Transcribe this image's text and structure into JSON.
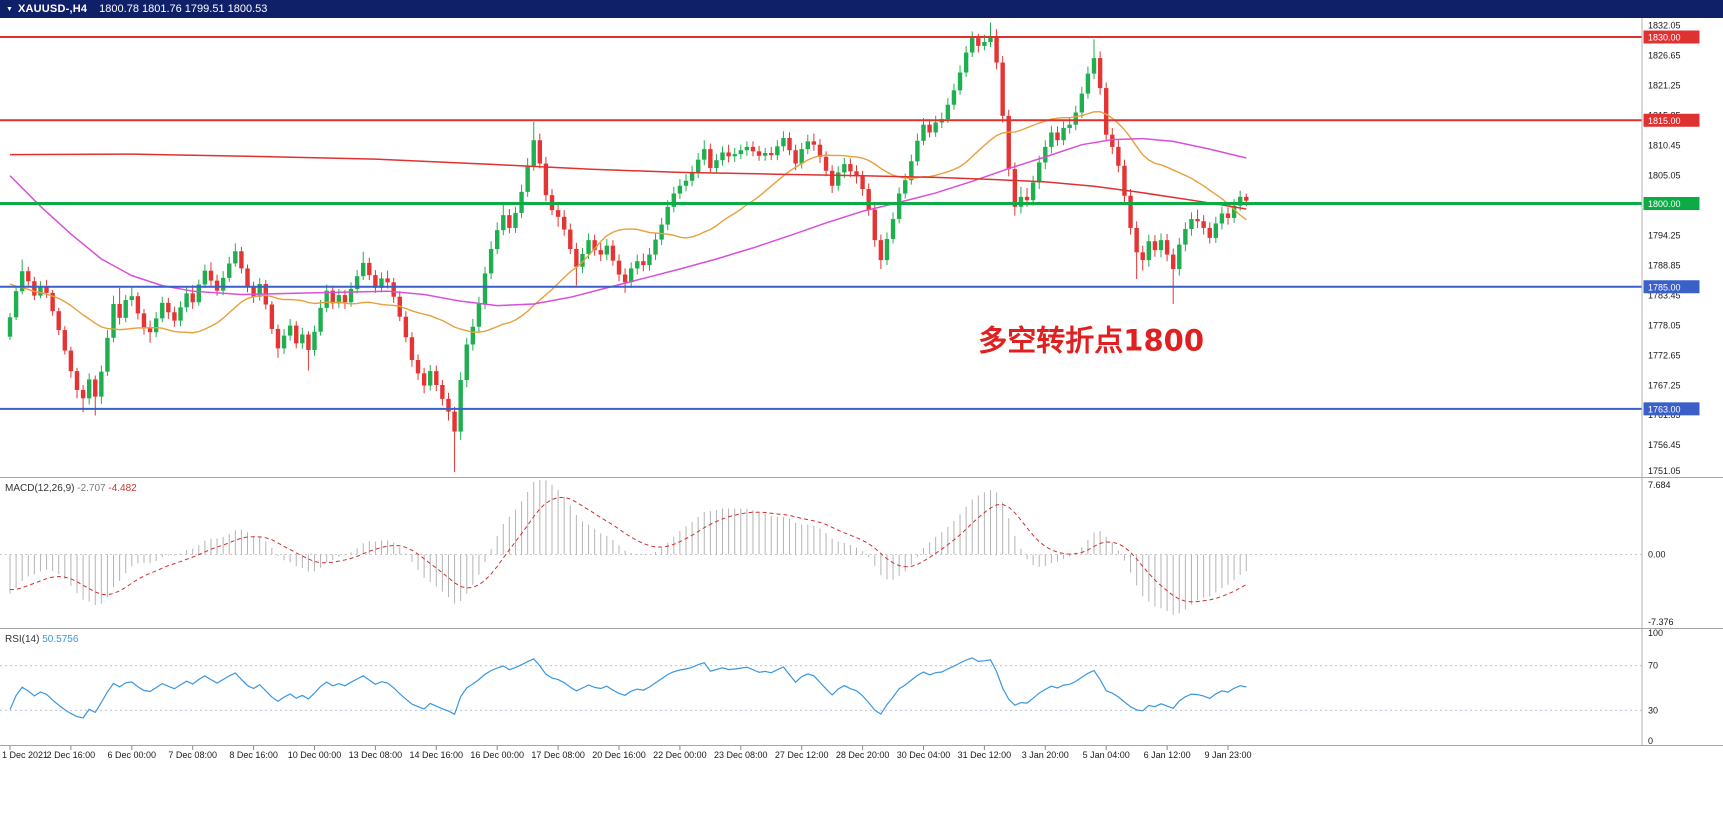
{
  "title_bar": {
    "symbol_timeframe": "XAUUSD-,H4",
    "quotes": "1800.78 1801.76 1799.51 1800.53"
  },
  "colors": {
    "up": "#1fae50",
    "down": "#e43434",
    "titlebar": "#0f2069",
    "ma_fast": "#e8a03c",
    "ma_mid": "#d94fd9",
    "ma_slow": "#e03131",
    "macd_hist": "#b4b4b4",
    "macd_signal": "#d03030",
    "rsi": "#3a97e0",
    "scale_text": "#1a1a1a",
    "axis_text": "#1a1a1a",
    "separator": "#a6a6a6"
  },
  "chart_data": {
    "type": "candlestick",
    "symbol": "XAUUSD-",
    "timeframe": "H4",
    "title": "XAUUSD-,H4 1800.78 1801.76 1799.51 1800.53",
    "x_axis_labels": [
      "1 Dec 2021",
      "2 Dec 16:00",
      "6 Dec 00:00",
      "7 Dec 08:00",
      "8 Dec 16:00",
      "10 Dec 00:00",
      "13 Dec 08:00",
      "14 Dec 16:00",
      "16 Dec 00:00",
      "17 Dec 08:00",
      "20 Dec 16:00",
      "22 Dec 00:00",
      "23 Dec 08:00",
      "27 Dec 12:00",
      "28 Dec 20:00",
      "30 Dec 04:00",
      "31 Dec 12:00",
      "3 Jan 20:00",
      "5 Jan 04:00",
      "6 Jan 12:00",
      "9 Jan 23:00"
    ],
    "bars_per_label": 10,
    "first_open": 1776.0,
    "prehistory_closes": [
      1797,
      1795,
      1793,
      1794,
      1792,
      1790,
      1791,
      1789,
      1787,
      1788,
      1786,
      1787,
      1785,
      1786,
      1784,
      1785,
      1783,
      1784,
      1782,
      1781,
      1780,
      1778,
      1777,
      1776
    ],
    "bars": [
      [
        1780.3,
        1775.4,
        1779.5
      ],
      [
        1785.0,
        1779.0,
        1784.2
      ],
      [
        1789.9,
        1783.6,
        1787.8
      ],
      [
        1788.6,
        1785.2,
        1786.0
      ],
      [
        1786.8,
        1782.6,
        1783.4
      ],
      [
        1786.0,
        1782.9,
        1785.1
      ],
      [
        1786.2,
        1783.0,
        1783.9
      ],
      [
        1784.4,
        1779.8,
        1780.6
      ],
      [
        1781.2,
        1776.3,
        1777.2
      ],
      [
        1777.9,
        1772.8,
        1773.5
      ],
      [
        1774.2,
        1768.6,
        1769.8
      ],
      [
        1770.4,
        1764.9,
        1766.4
      ],
      [
        1767.3,
        1762.4,
        1764.9
      ],
      [
        1769.4,
        1763.8,
        1768.3
      ],
      [
        1769.0,
        1761.8,
        1765.2
      ],
      [
        1770.8,
        1763.9,
        1769.7
      ],
      [
        1777.2,
        1768.9,
        1775.8
      ],
      [
        1783.4,
        1775.0,
        1781.9
      ],
      [
        1784.8,
        1778.2,
        1779.4
      ],
      [
        1783.5,
        1778.6,
        1782.6
      ],
      [
        1784.9,
        1781.5,
        1783.3
      ],
      [
        1784.0,
        1779.1,
        1780.2
      ],
      [
        1781.0,
        1776.4,
        1777.5
      ],
      [
        1778.9,
        1774.9,
        1776.8
      ],
      [
        1780.4,
        1775.9,
        1779.3
      ],
      [
        1783.2,
        1778.6,
        1782.1
      ],
      [
        1783.0,
        1779.2,
        1780.4
      ],
      [
        1781.4,
        1777.8,
        1778.9
      ],
      [
        1782.4,
        1777.9,
        1781.3
      ],
      [
        1784.9,
        1780.4,
        1783.8
      ],
      [
        1785.3,
        1781.0,
        1782.2
      ],
      [
        1786.3,
        1781.6,
        1785.4
      ],
      [
        1789.0,
        1784.8,
        1787.9
      ],
      [
        1789.4,
        1785.2,
        1786.1
      ],
      [
        1787.2,
        1783.4,
        1784.3
      ],
      [
        1787.8,
        1783.5,
        1786.6
      ],
      [
        1790.4,
        1785.9,
        1789.2
      ],
      [
        1792.8,
        1788.6,
        1791.4
      ],
      [
        1792.2,
        1787.4,
        1788.3
      ],
      [
        1789.0,
        1784.0,
        1784.9
      ],
      [
        1785.9,
        1782.1,
        1783.2
      ],
      [
        1786.6,
        1782.5,
        1785.5
      ],
      [
        1786.2,
        1780.9,
        1781.8
      ],
      [
        1782.4,
        1776.5,
        1777.4
      ],
      [
        1778.2,
        1772.2,
        1773.9
      ],
      [
        1777.4,
        1772.9,
        1776.2
      ],
      [
        1779.2,
        1775.3,
        1778.0
      ],
      [
        1778.8,
        1773.9,
        1774.8
      ],
      [
        1777.6,
        1773.8,
        1776.4
      ],
      [
        1777.0,
        1769.9,
        1773.6
      ],
      [
        1778.0,
        1772.6,
        1776.9
      ],
      [
        1782.6,
        1776.2,
        1781.2
      ],
      [
        1785.4,
        1780.4,
        1784.3
      ],
      [
        1785.2,
        1781.0,
        1782.0
      ],
      [
        1784.6,
        1781.2,
        1783.5
      ],
      [
        1784.4,
        1781.0,
        1782.2
      ],
      [
        1785.8,
        1781.4,
        1784.6
      ],
      [
        1788.0,
        1783.8,
        1786.9
      ],
      [
        1791.3,
        1786.2,
        1789.3
      ],
      [
        1790.2,
        1786.2,
        1787.1
      ],
      [
        1788.0,
        1783.9,
        1784.8
      ],
      [
        1787.6,
        1784.0,
        1786.5
      ],
      [
        1787.9,
        1784.7,
        1785.8
      ],
      [
        1786.6,
        1782.1,
        1783.2
      ],
      [
        1784.2,
        1778.8,
        1779.6
      ],
      [
        1780.6,
        1775.0,
        1775.9
      ],
      [
        1776.8,
        1770.6,
        1771.8
      ],
      [
        1772.8,
        1768.2,
        1769.4
      ],
      [
        1770.4,
        1765.8,
        1767.2
      ],
      [
        1770.9,
        1766.3,
        1769.8
      ],
      [
        1770.8,
        1766.2,
        1767.3
      ],
      [
        1768.2,
        1763.6,
        1764.8
      ],
      [
        1765.9,
        1760.9,
        1762.5
      ],
      [
        1763.4,
        1751.6,
        1758.9
      ],
      [
        1769.6,
        1757.4,
        1768.2
      ],
      [
        1775.8,
        1766.9,
        1774.6
      ],
      [
        1779.2,
        1773.5,
        1777.8
      ],
      [
        1783.2,
        1776.8,
        1781.9
      ],
      [
        1788.6,
        1781.0,
        1787.4
      ],
      [
        1793.2,
        1786.4,
        1791.8
      ],
      [
        1796.6,
        1790.9,
        1795.2
      ],
      [
        1799.8,
        1794.3,
        1797.9
      ],
      [
        1799.0,
        1794.6,
        1795.6
      ],
      [
        1799.4,
        1794.7,
        1798.3
      ],
      [
        1803.4,
        1797.4,
        1802.1
      ],
      [
        1808.2,
        1801.2,
        1806.8
      ],
      [
        1814.7,
        1805.9,
        1811.4
      ],
      [
        1812.6,
        1806.3,
        1807.2
      ],
      [
        1808.4,
        1800.4,
        1801.5
      ],
      [
        1802.6,
        1797.9,
        1798.8
      ],
      [
        1800.2,
        1795.8,
        1797.6
      ],
      [
        1798.8,
        1794.2,
        1795.3
      ],
      [
        1796.4,
        1790.9,
        1791.8
      ],
      [
        1792.9,
        1785.2,
        1788.6
      ],
      [
        1792.0,
        1787.5,
        1790.9
      ],
      [
        1794.6,
        1790.0,
        1793.4
      ],
      [
        1794.4,
        1790.6,
        1791.6
      ],
      [
        1792.9,
        1789.6,
        1790.8
      ],
      [
        1793.6,
        1789.8,
        1792.4
      ],
      [
        1793.4,
        1788.8,
        1789.7
      ],
      [
        1790.8,
        1786.0,
        1787.2
      ],
      [
        1788.3,
        1783.9,
        1785.8
      ],
      [
        1789.4,
        1784.8,
        1788.3
      ],
      [
        1790.8,
        1787.2,
        1789.6
      ],
      [
        1791.0,
        1787.8,
        1788.9
      ],
      [
        1792.0,
        1787.9,
        1790.8
      ],
      [
        1794.7,
        1789.8,
        1793.5
      ],
      [
        1797.4,
        1792.5,
        1796.2
      ],
      [
        1800.6,
        1795.2,
        1799.4
      ],
      [
        1803.0,
        1798.4,
        1801.8
      ],
      [
        1804.4,
        1800.8,
        1803.2
      ],
      [
        1805.3,
        1802.2,
        1804.1
      ],
      [
        1806.8,
        1803.1,
        1805.6
      ],
      [
        1809.1,
        1804.6,
        1807.9
      ],
      [
        1811.4,
        1806.9,
        1809.8
      ],
      [
        1810.8,
        1805.5,
        1806.4
      ],
      [
        1808.9,
        1805.4,
        1807.8
      ],
      [
        1810.3,
        1806.8,
        1809.2
      ],
      [
        1810.6,
        1807.4,
        1808.5
      ],
      [
        1810.0,
        1807.5,
        1808.9
      ],
      [
        1810.6,
        1808.0,
        1809.6
      ],
      [
        1811.2,
        1808.6,
        1810.2
      ],
      [
        1811.2,
        1808.5,
        1809.4
      ],
      [
        1810.4,
        1807.7,
        1808.6
      ],
      [
        1810.0,
        1807.7,
        1809.1
      ],
      [
        1810.2,
        1807.8,
        1808.7
      ],
      [
        1811.4,
        1807.8,
        1810.3
      ],
      [
        1813.0,
        1809.4,
        1811.8
      ],
      [
        1812.8,
        1808.7,
        1809.6
      ],
      [
        1810.6,
        1806.0,
        1807.2
      ],
      [
        1810.9,
        1806.3,
        1809.8
      ],
      [
        1812.4,
        1808.9,
        1811.2
      ],
      [
        1812.6,
        1809.5,
        1810.6
      ],
      [
        1811.6,
        1807.3,
        1808.4
      ],
      [
        1809.4,
        1804.9,
        1805.9
      ],
      [
        1806.9,
        1801.9,
        1803.2
      ],
      [
        1806.7,
        1802.3,
        1805.6
      ],
      [
        1808.2,
        1804.6,
        1807.1
      ],
      [
        1808.1,
        1804.8,
        1805.8
      ],
      [
        1806.9,
        1803.6,
        1804.9
      ],
      [
        1805.9,
        1801.4,
        1802.6
      ],
      [
        1803.6,
        1797.8,
        1798.9
      ],
      [
        1799.9,
        1792.2,
        1793.4
      ],
      [
        1794.4,
        1788.2,
        1789.8
      ],
      [
        1794.8,
        1788.9,
        1793.6
      ],
      [
        1798.4,
        1792.8,
        1797.2
      ],
      [
        1802.9,
        1796.4,
        1801.8
      ],
      [
        1805.4,
        1800.9,
        1804.2
      ],
      [
        1808.8,
        1803.4,
        1807.6
      ],
      [
        1812.6,
        1806.8,
        1811.3
      ],
      [
        1815.4,
        1810.5,
        1814.2
      ],
      [
        1815.2,
        1811.9,
        1812.8
      ],
      [
        1815.8,
        1812.0,
        1814.6
      ],
      [
        1816.4,
        1813.6,
        1815.2
      ],
      [
        1819.0,
        1814.5,
        1817.8
      ],
      [
        1821.6,
        1816.9,
        1820.4
      ],
      [
        1824.9,
        1819.6,
        1823.6
      ],
      [
        1828.4,
        1822.8,
        1827.2
      ],
      [
        1831.0,
        1826.4,
        1829.8
      ],
      [
        1830.6,
        1827.2,
        1828.4
      ],
      [
        1830.4,
        1827.6,
        1829.1
      ],
      [
        1832.6,
        1828.2,
        1830.2
      ],
      [
        1831.4,
        1824.2,
        1825.4
      ],
      [
        1826.6,
        1814.6,
        1815.8
      ],
      [
        1816.9,
        1804.9,
        1806.2
      ],
      [
        1807.4,
        1797.8,
        1799.4
      ],
      [
        1803.0,
        1798.2,
        1801.2
      ],
      [
        1802.8,
        1799.4,
        1800.6
      ],
      [
        1805.0,
        1799.6,
        1803.8
      ],
      [
        1808.6,
        1802.6,
        1807.4
      ],
      [
        1811.4,
        1806.2,
        1810.2
      ],
      [
        1814.0,
        1809.0,
        1812.8
      ],
      [
        1813.9,
        1810.4,
        1811.4
      ],
      [
        1814.8,
        1810.5,
        1813.6
      ],
      [
        1815.4,
        1812.6,
        1814.2
      ],
      [
        1817.6,
        1813.2,
        1816.4
      ],
      [
        1821.0,
        1815.4,
        1819.8
      ],
      [
        1824.7,
        1818.9,
        1823.4
      ],
      [
        1829.6,
        1822.4,
        1826.2
      ],
      [
        1827.4,
        1819.6,
        1820.8
      ],
      [
        1821.8,
        1811.2,
        1812.4
      ],
      [
        1813.6,
        1808.9,
        1810.2
      ],
      [
        1811.4,
        1805.6,
        1806.8
      ],
      [
        1807.9,
        1800.2,
        1801.4
      ],
      [
        1802.6,
        1794.4,
        1795.6
      ],
      [
        1796.8,
        1786.4,
        1791.2
      ],
      [
        1792.4,
        1787.9,
        1789.8
      ],
      [
        1794.4,
        1788.6,
        1793.2
      ],
      [
        1794.3,
        1790.4,
        1791.6
      ],
      [
        1794.6,
        1790.3,
        1793.4
      ],
      [
        1794.5,
        1789.6,
        1790.8
      ],
      [
        1791.9,
        1781.9,
        1788.2
      ],
      [
        1793.8,
        1787.0,
        1792.6
      ],
      [
        1796.6,
        1791.4,
        1795.4
      ],
      [
        1798.4,
        1794.2,
        1797.2
      ],
      [
        1798.9,
        1795.6,
        1796.8
      ],
      [
        1797.9,
        1794.4,
        1795.6
      ],
      [
        1796.6,
        1792.8,
        1793.8
      ],
      [
        1797.6,
        1792.9,
        1796.4
      ],
      [
        1799.4,
        1795.3,
        1798.2
      ],
      [
        1799.3,
        1796.2,
        1797.4
      ],
      [
        1800.8,
        1796.5,
        1799.6
      ],
      [
        1802.3,
        1798.7,
        1801.2
      ],
      [
        1801.8,
        1799.5,
        1800.5
      ]
    ],
    "price_axis_ticks": [
      "1832.05",
      "1826.65",
      "1821.25",
      "1815.85",
      "1810.45",
      "1805.05",
      "1799.65",
      "1794.25",
      "1788.85",
      "1783.45",
      "1778.05",
      "1772.65",
      "1767.25",
      "1761.85",
      "1756.45",
      "1751.05"
    ],
    "horizontal_lines": [
      {
        "price": 1830.0,
        "label": "1830.00",
        "color": "#e03131",
        "width": 2
      },
      {
        "price": 1815.0,
        "label": "1815.00",
        "color": "#e03131",
        "width": 2
      },
      {
        "price": 1800.0,
        "label": "1800.00",
        "color": "#0cab45",
        "width": 3
      },
      {
        "price": 1785.0,
        "label": "1785.00",
        "color": "#3a5fc8",
        "width": 2
      },
      {
        "price": 1763.0,
        "label": "1763.00",
        "color": "#3a5fc8",
        "width": 2
      }
    ],
    "annotation": {
      "text": "多空转折点1800",
      "color": "#e02020",
      "bar_index": 159,
      "price": 1773.5,
      "font_size": 29
    },
    "moving_averages": [
      {
        "name": "fast-orange",
        "color": "#e8a03c",
        "width": 1.4,
        "method": "sma",
        "period": 24
      },
      {
        "name": "mid-magenta",
        "color": "#d94fd9",
        "width": 1.5,
        "anchors": [
          [
            0,
            1805.0
          ],
          [
            5,
            1799.5
          ],
          [
            10,
            1794.5
          ],
          [
            15,
            1790.0
          ],
          [
            20,
            1787.0
          ],
          [
            25,
            1785.2
          ],
          [
            30,
            1784.2
          ],
          [
            38,
            1783.6
          ],
          [
            46,
            1783.8
          ],
          [
            54,
            1784.0
          ],
          [
            62,
            1784.2
          ],
          [
            68,
            1783.6
          ],
          [
            74,
            1782.4
          ],
          [
            80,
            1781.6
          ],
          [
            86,
            1781.9
          ],
          [
            92,
            1783.1
          ],
          [
            98,
            1784.8
          ],
          [
            104,
            1786.5
          ],
          [
            110,
            1788.2
          ],
          [
            116,
            1790.0
          ],
          [
            122,
            1792.0
          ],
          [
            128,
            1794.2
          ],
          [
            134,
            1796.5
          ],
          [
            140,
            1798.6
          ],
          [
            146,
            1800.2
          ],
          [
            152,
            1801.9
          ],
          [
            158,
            1804.0
          ],
          [
            164,
            1806.3
          ],
          [
            170,
            1808.4
          ],
          [
            176,
            1810.6
          ],
          [
            181,
            1811.5
          ],
          [
            186,
            1811.7
          ],
          [
            191,
            1811.2
          ],
          [
            197,
            1809.8
          ],
          [
            203,
            1808.2
          ]
        ]
      },
      {
        "name": "slow-red",
        "color": "#e03131",
        "width": 1.5,
        "anchors": [
          [
            0,
            1808.8
          ],
          [
            20,
            1808.9
          ],
          [
            40,
            1808.5
          ],
          [
            60,
            1808.0
          ],
          [
            80,
            1807.0
          ],
          [
            95,
            1806.2
          ],
          [
            110,
            1805.6
          ],
          [
            125,
            1805.3
          ],
          [
            140,
            1805.0
          ],
          [
            152,
            1804.7
          ],
          [
            162,
            1804.3
          ],
          [
            170,
            1803.9
          ],
          [
            178,
            1803.1
          ],
          [
            185,
            1802.1
          ],
          [
            191,
            1801.1
          ],
          [
            197,
            1800.1
          ],
          [
            203,
            1799.0
          ]
        ]
      }
    ],
    "indicators": {
      "macd": {
        "label": "MACD(12,26,9)",
        "fast": 12,
        "slow": 26,
        "signal": 9,
        "current_value": "-2.707",
        "current_signal": "-4.482",
        "scale": {
          "max": "7.684",
          "zero": "0.00",
          "min": "-7.376"
        }
      },
      "rsi": {
        "label": "RSI(14)",
        "period": 14,
        "current_value": "50.5756",
        "levels": [
          70,
          30
        ],
        "scale": {
          "top": "100",
          "upper": "70",
          "lower": "30",
          "bottom": "0"
        }
      }
    }
  }
}
